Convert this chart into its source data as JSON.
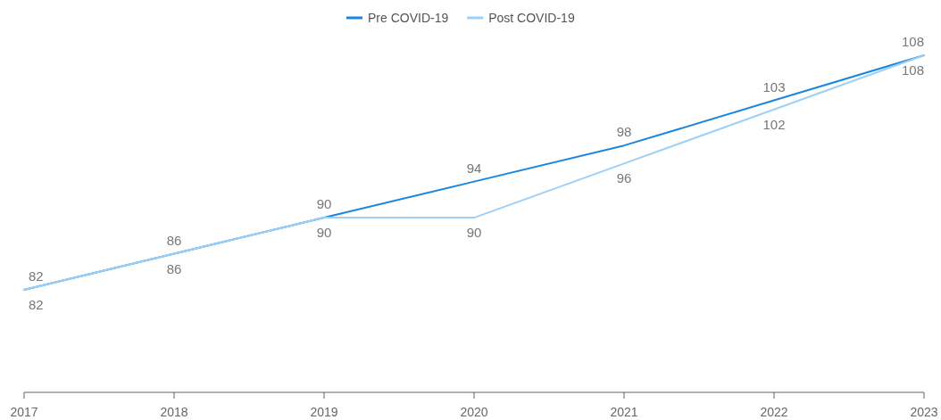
{
  "chart_data": {
    "type": "line",
    "categories": [
      "2017",
      "2018",
      "2019",
      "2020",
      "2021",
      "2022",
      "2023"
    ],
    "series": [
      {
        "name": "Pre COVID-19",
        "color": "#1a86e0",
        "values": [
          82,
          86,
          90,
          94,
          98,
          103,
          108
        ]
      },
      {
        "name": "Post COVID-19",
        "color": "#9dd0f6",
        "values": [
          82,
          86,
          90,
          90,
          96,
          102,
          108
        ]
      }
    ],
    "data_labels": true,
    "legend": "top",
    "marker": "none",
    "line_style": "solid"
  }
}
